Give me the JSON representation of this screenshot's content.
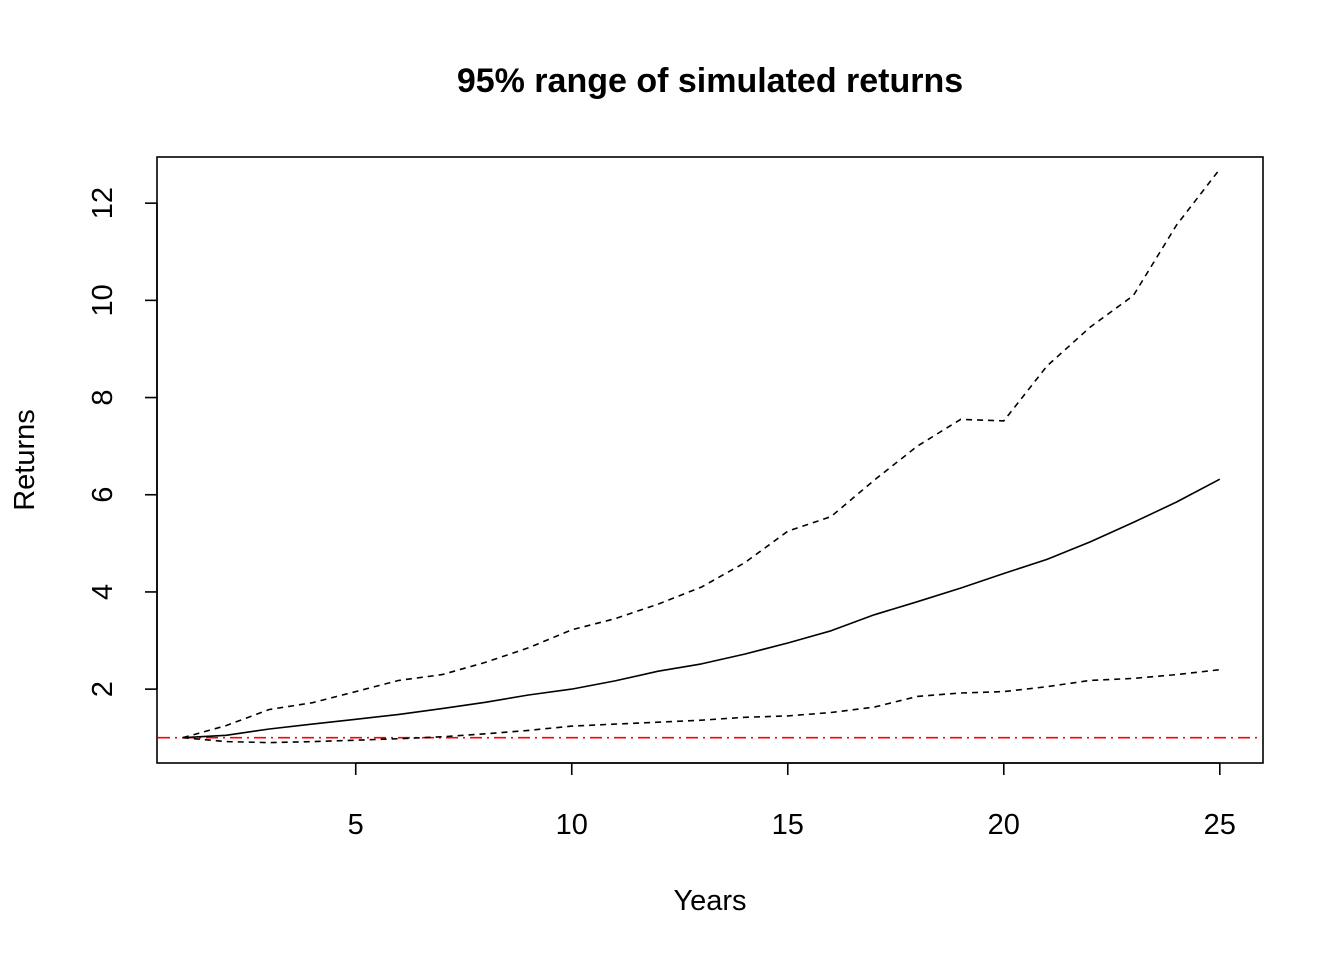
{
  "chart_data": {
    "type": "line",
    "title": "95% range of simulated returns",
    "xlabel": "Years",
    "ylabel": "Returns",
    "xlim": [
      0.4,
      26.0
    ],
    "ylim": [
      0.48,
      12.95
    ],
    "x_ticks": [
      5,
      10,
      15,
      20,
      25
    ],
    "y_ticks": [
      2,
      4,
      6,
      8,
      10,
      12
    ],
    "grid": false,
    "legend": "none",
    "x": [
      1,
      2,
      3,
      4,
      5,
      6,
      7,
      8,
      9,
      10,
      11,
      12,
      13,
      14,
      15,
      16,
      17,
      18,
      19,
      20,
      21,
      22,
      23,
      24,
      25
    ],
    "series": [
      {
        "line_style": "dashed",
        "color": "#000000",
        "values": [
          1.0,
          1.25,
          1.58,
          1.72,
          1.95,
          2.18,
          2.3,
          2.55,
          2.85,
          3.22,
          3.45,
          3.75,
          4.1,
          4.6,
          5.25,
          5.55,
          6.3,
          7.0,
          7.55,
          7.52,
          8.65,
          9.45,
          10.1,
          11.55,
          12.7
        ]
      },
      {
        "line_style": "solid",
        "color": "#000000",
        "values": [
          1.0,
          1.05,
          1.18,
          1.28,
          1.38,
          1.48,
          1.6,
          1.73,
          1.88,
          2.0,
          2.17,
          2.37,
          2.52,
          2.72,
          2.95,
          3.2,
          3.53,
          3.8,
          4.08,
          4.38,
          4.67,
          5.03,
          5.43,
          5.85,
          6.32
        ]
      },
      {
        "line_style": "dashed",
        "color": "#000000",
        "values": [
          1.0,
          0.92,
          0.9,
          0.92,
          0.95,
          0.98,
          1.02,
          1.08,
          1.15,
          1.24,
          1.28,
          1.32,
          1.36,
          1.42,
          1.45,
          1.52,
          1.63,
          1.85,
          1.92,
          1.95,
          2.05,
          2.18,
          2.22,
          2.3,
          2.4
        ]
      }
    ],
    "reference_line": {
      "y": 1,
      "color": "#ff0000",
      "line_style": "dashdot"
    }
  }
}
